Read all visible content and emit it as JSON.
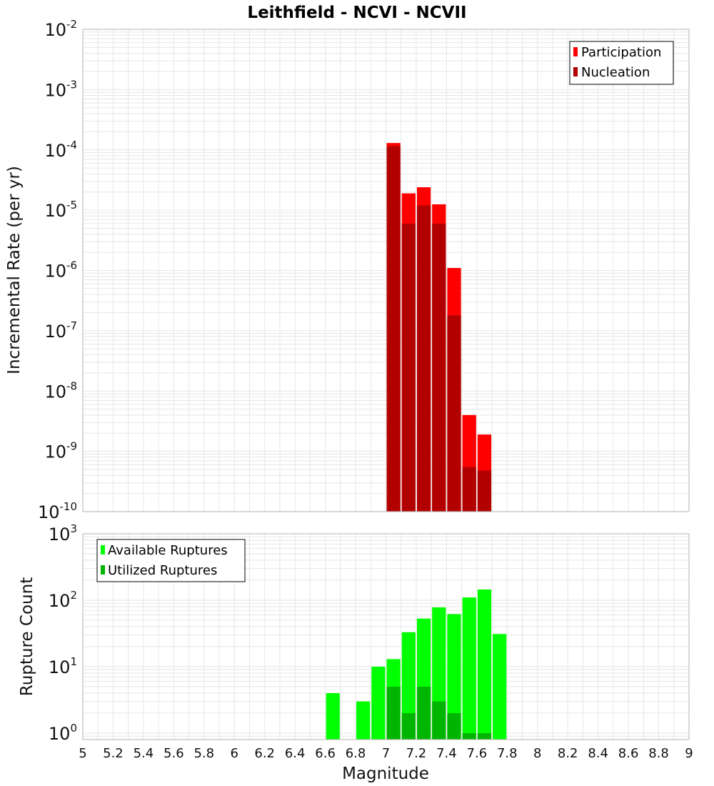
{
  "title": "Leithfield - NCVI - NCVII",
  "xlabel": "Magnitude",
  "colors": {
    "participation": "#ff0000",
    "nucleation": "#b20000",
    "available": "#00ff00",
    "utilized": "#00b500",
    "grid": "#e6e6e6",
    "frame": "#b3b3b3"
  },
  "chart_data": [
    {
      "type": "bar",
      "ylabel": "Incremental Rate (per yr)",
      "yscale": "log",
      "xlim": [
        5,
        9
      ],
      "ylim": [
        1e-10,
        0.01
      ],
      "x_ticks": [
        "5",
        "5.2",
        "5.4",
        "5.6",
        "5.8",
        "6",
        "6.2",
        "6.4",
        "6.6",
        "6.8",
        "7",
        "7.2",
        "7.4",
        "7.6",
        "7.8",
        "8",
        "8.2",
        "8.4",
        "8.6",
        "8.8",
        "9"
      ],
      "y_ticks": [
        {
          "base": "10",
          "exp": "-2"
        },
        {
          "base": "10",
          "exp": "-3"
        },
        {
          "base": "10",
          "exp": "-4"
        },
        {
          "base": "10",
          "exp": "-5"
        },
        {
          "base": "10",
          "exp": "-6"
        },
        {
          "base": "10",
          "exp": "-7"
        },
        {
          "base": "10",
          "exp": "-8"
        },
        {
          "base": "10",
          "exp": "-9"
        },
        {
          "base": "10",
          "exp": "-10"
        }
      ],
      "grid": true,
      "legend_position": "top-right",
      "bar_width": 0.1,
      "series": [
        {
          "name": "Participation",
          "x": [
            7.05,
            7.15,
            7.25,
            7.35,
            7.45,
            7.55,
            7.65
          ],
          "values": [
            0.00013,
            1.9e-05,
            2.4e-05,
            1.25e-05,
            1.1e-06,
            4e-09,
            1.9e-09
          ]
        },
        {
          "name": "Nucleation",
          "x": [
            7.05,
            7.15,
            7.25,
            7.35,
            7.45,
            7.55,
            7.65
          ],
          "values": [
            0.000115,
            6e-06,
            1.2e-05,
            6e-06,
            1.8e-07,
            5.5e-10,
            4.8e-10
          ]
        }
      ]
    },
    {
      "type": "bar",
      "ylabel": "Rupture Count",
      "yscale": "log",
      "xlim": [
        5,
        9
      ],
      "ylim": [
        0.8,
        1000
      ],
      "x_ticks": [
        "5",
        "5.2",
        "5.4",
        "5.6",
        "5.8",
        "6",
        "6.2",
        "6.4",
        "6.6",
        "6.8",
        "7",
        "7.2",
        "7.4",
        "7.6",
        "7.8",
        "8",
        "8.2",
        "8.4",
        "8.6",
        "8.8",
        "9"
      ],
      "y_ticks": [
        {
          "base": "10",
          "exp": "3"
        },
        {
          "base": "10",
          "exp": "2"
        },
        {
          "base": "10",
          "exp": "1"
        },
        {
          "base": "10",
          "exp": "0"
        }
      ],
      "grid": true,
      "legend_position": "top-left",
      "bar_width": 0.1,
      "series": [
        {
          "name": "Available Ruptures",
          "x": [
            6.65,
            6.85,
            6.95,
            7.05,
            7.15,
            7.25,
            7.35,
            7.45,
            7.55,
            7.65,
            7.75
          ],
          "values": [
            4,
            3,
            10,
            13,
            33,
            53,
            78,
            62,
            110,
            145,
            31
          ]
        },
        {
          "name": "Utilized Ruptures",
          "x": [
            7.05,
            7.15,
            7.25,
            7.35,
            7.45,
            7.55,
            7.65
          ],
          "values": [
            5,
            2,
            5,
            3,
            2,
            1,
            1
          ]
        }
      ]
    }
  ]
}
